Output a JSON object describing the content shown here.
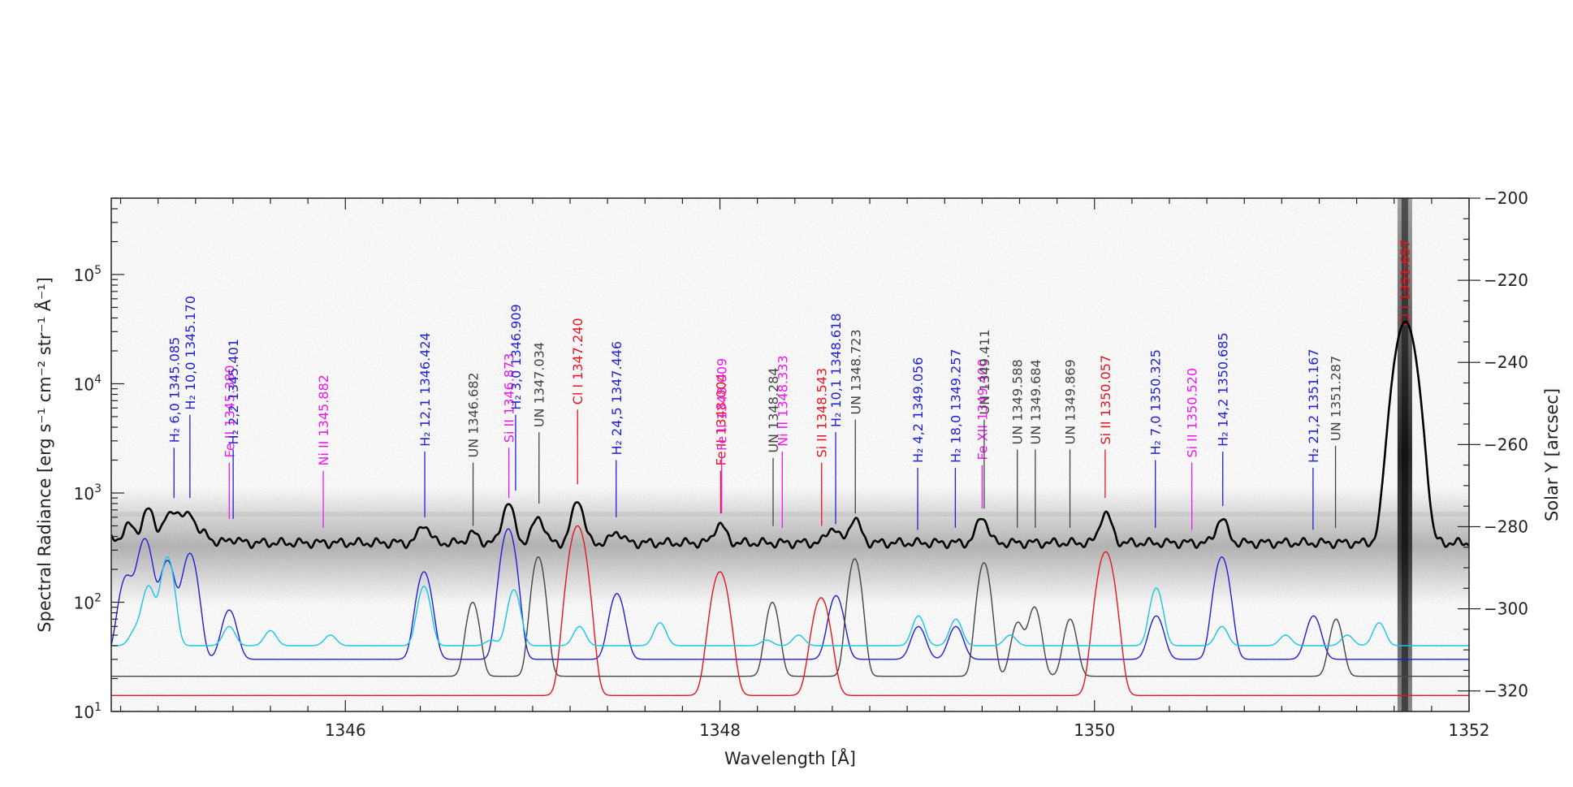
{
  "chart_data": {
    "type": "line",
    "title": "",
    "xlabel": "Wavelength [Å]",
    "ylabel": "Spectral Radiance [erg s⁻¹ cm⁻² str⁻¹ Å⁻¹]",
    "y2label": "Solar Y [arcsec]",
    "xlim": [
      1344.75,
      1352.0
    ],
    "ylim": [
      10,
      500000
    ],
    "y_scale": "log",
    "y2lim": [
      -325,
      -200
    ],
    "x_ticks": [
      1346,
      1348,
      1350,
      1352
    ],
    "y_ticks": [
      {
        "value": 10,
        "base": "10",
        "exp": "1"
      },
      {
        "value": 100,
        "base": "10",
        "exp": "2"
      },
      {
        "value": 1000,
        "base": "10",
        "exp": "3"
      },
      {
        "value": 10000,
        "base": "10",
        "exp": "4"
      },
      {
        "value": 100000,
        "base": "10",
        "exp": "5"
      }
    ],
    "y2_ticks": [
      -200,
      -220,
      -240,
      -260,
      -280,
      -300,
      -320
    ],
    "background": "grayscale spectrogram (solar Y vs wavelength)",
    "grid": false,
    "colors": {
      "observed": "#000000",
      "H2": "#1f1fd6",
      "UN": "#444444",
      "red": "#e8141e",
      "magenta": "#ee18ee",
      "cyan": "#17c6e6"
    },
    "observed_spectrum": {
      "baseline": 350,
      "x": [
        1344.75,
        1344.85,
        1344.95,
        1345.05,
        1345.1,
        1345.17,
        1345.25,
        1345.4,
        1346.42,
        1346.68,
        1346.87,
        1347.03,
        1347.24,
        1347.45,
        1348.0,
        1348.6,
        1348.72,
        1349.4,
        1350.06,
        1350.68,
        1351.66,
        1352.0
      ],
      "y": [
        400,
        520,
        720,
        560,
        620,
        640,
        420,
        380,
        510,
        430,
        800,
        600,
        850,
        440,
        520,
        480,
        580,
        600,
        660,
        580,
        37000,
        330
      ]
    },
    "series": [
      {
        "name": "H2",
        "baseline": 30,
        "peaks": [
          [
            1344.83,
            170
          ],
          [
            1344.93,
            380
          ],
          [
            1345.05,
            240
          ],
          [
            1345.17,
            280
          ],
          [
            1345.38,
            85
          ],
          [
            1346.42,
            190
          ],
          [
            1346.87,
            470
          ],
          [
            1347.45,
            120
          ],
          [
            1348.62,
            115
          ],
          [
            1349.06,
            60
          ],
          [
            1349.26,
            60
          ],
          [
            1350.33,
            75
          ],
          [
            1350.68,
            260
          ],
          [
            1351.17,
            75
          ]
        ]
      },
      {
        "name": "UN",
        "baseline": 21,
        "peaks": [
          [
            1346.68,
            100
          ],
          [
            1347.03,
            260
          ],
          [
            1348.28,
            100
          ],
          [
            1348.72,
            250
          ],
          [
            1349.41,
            230
          ],
          [
            1349.59,
            65
          ],
          [
            1349.68,
            90
          ],
          [
            1349.87,
            70
          ],
          [
            1351.29,
            70
          ]
        ]
      },
      {
        "name": "red",
        "baseline": 14,
        "peaks": [
          [
            1347.24,
            500
          ],
          [
            1348.0,
            190
          ],
          [
            1348.54,
            110
          ],
          [
            1350.06,
            290
          ]
        ]
      },
      {
        "name": "cyan",
        "baseline": 40,
        "peaks": [
          [
            1344.88,
            55
          ],
          [
            1344.95,
            140
          ],
          [
            1345.05,
            260
          ],
          [
            1345.38,
            60
          ],
          [
            1345.6,
            55
          ],
          [
            1345.92,
            50
          ],
          [
            1346.42,
            140
          ],
          [
            1346.78,
            45
          ],
          [
            1346.9,
            130
          ],
          [
            1347.25,
            60
          ],
          [
            1347.68,
            65
          ],
          [
            1348.25,
            45
          ],
          [
            1348.42,
            50
          ],
          [
            1349.06,
            75
          ],
          [
            1349.26,
            70
          ],
          [
            1349.55,
            50
          ],
          [
            1350.33,
            135
          ],
          [
            1350.68,
            60
          ],
          [
            1351.02,
            50
          ],
          [
            1351.35,
            50
          ],
          [
            1351.52,
            65
          ]
        ]
      }
    ],
    "line_ids": [
      {
        "x": 1345.085,
        "label": "H₂ 6,0 1345.085",
        "color": "H2",
        "y_top": 2600,
        "y_bot": 900
      },
      {
        "x": 1345.17,
        "label": "H₂ 10,0 1345.170",
        "color": "H2",
        "y_top": 5200,
        "y_bot": 900
      },
      {
        "x": 1345.38,
        "label": "Fe II 1345.380",
        "color": "magenta",
        "y_top": 1900,
        "y_bot": 580
      },
      {
        "x": 1345.401,
        "label": "H₂ 2,2 1345.401",
        "color": "H2",
        "y_top": 2500,
        "y_bot": 580
      },
      {
        "x": 1345.882,
        "label": "Ni II 1345.882",
        "color": "magenta",
        "y_top": 1600,
        "y_bot": 480
      },
      {
        "x": 1346.424,
        "label": "H₂ 12,1 1346.424",
        "color": "H2",
        "y_top": 2400,
        "y_bot": 600
      },
      {
        "x": 1346.682,
        "label": "UN 1346.682",
        "color": "UN",
        "y_top": 1900,
        "y_bot": 500
      },
      {
        "x": 1346.873,
        "label": "Si II 1346.873",
        "color": "magenta",
        "y_top": 2600,
        "y_bot": 900
      },
      {
        "x": 1346.909,
        "label": "H₂ 3,0 1346.909",
        "color": "H2",
        "y_top": 5200,
        "y_bot": 1050
      },
      {
        "x": 1347.034,
        "label": "UN 1347.034",
        "color": "UN",
        "y_top": 3600,
        "y_bot": 800
      },
      {
        "x": 1347.24,
        "label": "Cl I 1347.240",
        "color": "red",
        "y_top": 5800,
        "y_bot": 1200
      },
      {
        "x": 1347.446,
        "label": "H₂ 24,5 1347.446",
        "color": "H2",
        "y_top": 2000,
        "y_bot": 600
      },
      {
        "x": 1348.004,
        "label": "Fe II 1348.004",
        "color": "red",
        "y_top": 1600,
        "y_bot": 650
      },
      {
        "x": 1348.009,
        "label": "Fe II 1348.009",
        "color": "magenta",
        "y_top": 2200,
        "y_bot": 650
      },
      {
        "x": 1348.284,
        "label": "UN 1348.284",
        "color": "UN",
        "y_top": 2100,
        "y_bot": 500
      },
      {
        "x": 1348.333,
        "label": "Ni II 1348.333",
        "color": "magenta",
        "y_top": 2400,
        "y_bot": 480
      },
      {
        "x": 1348.543,
        "label": "Si II 1348.543",
        "color": "red",
        "y_top": 1900,
        "y_bot": 500
      },
      {
        "x": 1348.618,
        "label": "H₂ 10,1 1348.618",
        "color": "H2",
        "y_top": 3600,
        "y_bot": 520
      },
      {
        "x": 1348.723,
        "label": "UN 1348.723",
        "color": "UN",
        "y_top": 4700,
        "y_bot": 650
      },
      {
        "x": 1349.056,
        "label": "H₂ 4,2 1349.056",
        "color": "H2",
        "y_top": 1700,
        "y_bot": 460
      },
      {
        "x": 1349.257,
        "label": "H₂ 18,0 1349.257",
        "color": "H2",
        "y_top": 1700,
        "y_bot": 480
      },
      {
        "x": 1349.4,
        "label": "Fe XII 1349.400",
        "color": "magenta",
        "y_top": 1800,
        "y_bot": 720
      },
      {
        "x": 1349.411,
        "label": "UN 1349.411",
        "color": "UN",
        "y_top": 4700,
        "y_bot": 720
      },
      {
        "x": 1349.588,
        "label": "UN 1349.588",
        "color": "UN",
        "y_top": 2500,
        "y_bot": 480
      },
      {
        "x": 1349.684,
        "label": "UN 1349.684",
        "color": "UN",
        "y_top": 2500,
        "y_bot": 480
      },
      {
        "x": 1349.869,
        "label": "UN 1349.869",
        "color": "UN",
        "y_top": 2500,
        "y_bot": 480
      },
      {
        "x": 1350.057,
        "label": "Si II 1350.057",
        "color": "red",
        "y_top": 2500,
        "y_bot": 900
      },
      {
        "x": 1350.325,
        "label": "H₂ 7,0 1350.325",
        "color": "H2",
        "y_top": 2000,
        "y_bot": 480
      },
      {
        "x": 1350.52,
        "label": "Si II 1350.520",
        "color": "magenta",
        "y_top": 1900,
        "y_bot": 460
      },
      {
        "x": 1350.685,
        "label": "H₂ 14,2 1350.685",
        "color": "H2",
        "y_top": 2400,
        "y_bot": 760
      },
      {
        "x": 1351.167,
        "label": "H₂ 21,2 1351.167",
        "color": "H2",
        "y_top": 1700,
        "y_bot": 460
      },
      {
        "x": 1351.287,
        "label": "UN 1351.287",
        "color": "UN",
        "y_top": 2700,
        "y_bot": 480
      },
      {
        "x": 1351.657,
        "label": "Cl I 1351.657",
        "color": "red",
        "y_top": 190000,
        "y_bot": 65000,
        "label_mode": "inside"
      }
    ]
  }
}
